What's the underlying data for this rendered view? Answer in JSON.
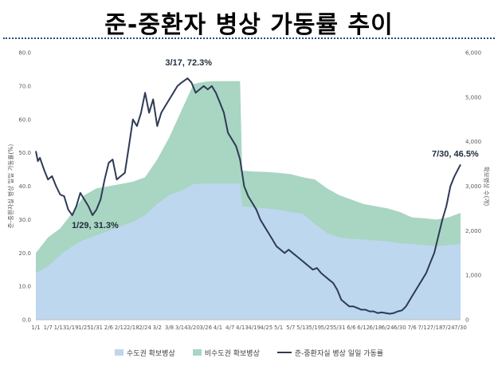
{
  "page": {
    "title": "준-중환자 병상 가동률 추이"
  },
  "colors": {
    "capital_area": "#bdd7ee",
    "non_capital_area": "#a9d5c3",
    "utilization_line": "#2e3b55",
    "title_rule": "#1f4e79"
  },
  "chart_data": {
    "type": "area",
    "title": "",
    "ylabel_left": "준-중환자실 병상 일일 가동률(%)",
    "ylabel_right": "확보병상 수(개)",
    "ylim_left": [
      0,
      80
    ],
    "ylim_right": [
      0,
      6000
    ],
    "yticks_left": [
      "0.0",
      "10.0",
      "20.0",
      "30.0",
      "40.0",
      "50.0",
      "60.0",
      "70.0",
      "80.0"
    ],
    "yticks_right": [
      "0",
      "1,000",
      "2,000",
      "3,000",
      "4,000",
      "5,000",
      "6,000"
    ],
    "x_start": "1/1",
    "x_end": "7/30",
    "xticks": [
      "1/1",
      "1/7",
      "1/13",
      "1/19",
      "1/25",
      "1/31",
      "2/6",
      "2/12",
      "2/18",
      "2/24",
      "3/2",
      "3/8",
      "3/14",
      "3/20",
      "3/26",
      "4/1",
      "4/7",
      "4/13",
      "4/19",
      "4/25",
      "5/1",
      "5/7",
      "5/13",
      "5/19",
      "5/25",
      "5/31",
      "6/6",
      "6/12",
      "6/18",
      "6/24",
      "6/30",
      "7/6",
      "7/12",
      "7/18",
      "7/24",
      "7/30"
    ],
    "legend_position": "bottom",
    "grid": false,
    "series": [
      {
        "name": "수도권 확보병상",
        "kind": "area",
        "axis": "right",
        "points": [
          [
            "1/1",
            1050
          ],
          [
            "1/7",
            1200
          ],
          [
            "1/13",
            1450
          ],
          [
            "1/19",
            1650
          ],
          [
            "1/25",
            1800
          ],
          [
            "1/31",
            1900
          ],
          [
            "2/6",
            2000
          ],
          [
            "2/12",
            2100
          ],
          [
            "2/18",
            2200
          ],
          [
            "2/24",
            2350
          ],
          [
            "3/2",
            2600
          ],
          [
            "3/8",
            2800
          ],
          [
            "3/14",
            2900
          ],
          [
            "3/20",
            3050
          ],
          [
            "3/26",
            3060
          ],
          [
            "4/1",
            3060
          ],
          [
            "4/7",
            3060
          ],
          [
            "4/12",
            3060
          ],
          [
            "4/13",
            2550
          ],
          [
            "4/19",
            2520
          ],
          [
            "4/25",
            2500
          ],
          [
            "5/1",
            2470
          ],
          [
            "5/7",
            2420
          ],
          [
            "5/13",
            2380
          ],
          [
            "5/19",
            2150
          ],
          [
            "5/25",
            1950
          ],
          [
            "5/31",
            1850
          ],
          [
            "6/6",
            1820
          ],
          [
            "6/12",
            1800
          ],
          [
            "6/18",
            1780
          ],
          [
            "6/24",
            1760
          ],
          [
            "6/30",
            1720
          ],
          [
            "7/6",
            1700
          ],
          [
            "7/12",
            1680
          ],
          [
            "7/18",
            1650
          ],
          [
            "7/24",
            1680
          ],
          [
            "7/30",
            1700
          ]
        ]
      },
      {
        "name": "비수도권 확보병상",
        "kind": "area",
        "axis": "right",
        "points": [
          [
            "1/1",
            1500
          ],
          [
            "1/7",
            1850
          ],
          [
            "1/13",
            2050
          ],
          [
            "1/19",
            2400
          ],
          [
            "1/25",
            2800
          ],
          [
            "1/31",
            2950
          ],
          [
            "2/6",
            3000
          ],
          [
            "2/12",
            3050
          ],
          [
            "2/18",
            3100
          ],
          [
            "2/24",
            3200
          ],
          [
            "3/2",
            3600
          ],
          [
            "3/8",
            4100
          ],
          [
            "3/14",
            4700
          ],
          [
            "3/20",
            5300
          ],
          [
            "3/26",
            5350
          ],
          [
            "4/1",
            5360
          ],
          [
            "4/7",
            5360
          ],
          [
            "4/12",
            5360
          ],
          [
            "4/13",
            3350
          ],
          [
            "4/19",
            3330
          ],
          [
            "4/25",
            3320
          ],
          [
            "5/1",
            3300
          ],
          [
            "5/7",
            3270
          ],
          [
            "5/13",
            3200
          ],
          [
            "5/19",
            3150
          ],
          [
            "5/25",
            2950
          ],
          [
            "5/31",
            2800
          ],
          [
            "6/6",
            2700
          ],
          [
            "6/12",
            2600
          ],
          [
            "6/18",
            2550
          ],
          [
            "6/24",
            2500
          ],
          [
            "6/30",
            2420
          ],
          [
            "7/6",
            2300
          ],
          [
            "7/12",
            2280
          ],
          [
            "7/18",
            2250
          ],
          [
            "7/24",
            2300
          ],
          [
            "7/30",
            2400
          ]
        ]
      },
      {
        "name": "준-중환자실 병상 일일 가동률",
        "kind": "line",
        "axis": "left",
        "points": [
          [
            "1/1",
            50.5
          ],
          [
            "1/2",
            47.5
          ],
          [
            "1/3",
            48.5
          ],
          [
            "1/5",
            45
          ],
          [
            "1/7",
            42
          ],
          [
            "1/9",
            43
          ],
          [
            "1/11",
            40
          ],
          [
            "1/13",
            37.5
          ],
          [
            "1/15",
            37
          ],
          [
            "1/17",
            33
          ],
          [
            "1/19",
            31.3
          ],
          [
            "1/21",
            34
          ],
          [
            "1/23",
            38
          ],
          [
            "1/25",
            36
          ],
          [
            "1/27",
            34
          ],
          [
            "1/29",
            31.3
          ],
          [
            "1/31",
            33
          ],
          [
            "2/2",
            36
          ],
          [
            "2/4",
            42
          ],
          [
            "2/6",
            47
          ],
          [
            "2/8",
            48
          ],
          [
            "2/10",
            42
          ],
          [
            "2/12",
            43
          ],
          [
            "2/14",
            44
          ],
          [
            "2/16",
            52
          ],
          [
            "2/18",
            60
          ],
          [
            "2/20",
            58
          ],
          [
            "2/22",
            62
          ],
          [
            "2/24",
            68
          ],
          [
            "2/26",
            62
          ],
          [
            "2/28",
            66
          ],
          [
            "3/2",
            58
          ],
          [
            "3/4",
            62
          ],
          [
            "3/6",
            64
          ],
          [
            "3/8",
            66
          ],
          [
            "3/10",
            68
          ],
          [
            "3/12",
            70
          ],
          [
            "3/14",
            71
          ],
          [
            "3/17",
            72.3
          ],
          [
            "3/19",
            71
          ],
          [
            "3/21",
            68
          ],
          [
            "3/23",
            69
          ],
          [
            "3/25",
            70
          ],
          [
            "3/27",
            69
          ],
          [
            "3/29",
            70
          ],
          [
            "3/31",
            68
          ],
          [
            "4/2",
            65
          ],
          [
            "4/4",
            62
          ],
          [
            "4/6",
            56
          ],
          [
            "4/8",
            54
          ],
          [
            "4/10",
            52
          ],
          [
            "4/12",
            48
          ],
          [
            "4/14",
            40
          ],
          [
            "4/16",
            37
          ],
          [
            "4/18",
            35
          ],
          [
            "4/20",
            33
          ],
          [
            "4/22",
            30
          ],
          [
            "4/24",
            28
          ],
          [
            "4/26",
            26
          ],
          [
            "4/28",
            24
          ],
          [
            "4/30",
            22
          ],
          [
            "5/2",
            21
          ],
          [
            "5/4",
            20
          ],
          [
            "5/6",
            21
          ],
          [
            "5/8",
            20
          ],
          [
            "5/10",
            19
          ],
          [
            "5/12",
            18
          ],
          [
            "5/14",
            17
          ],
          [
            "5/16",
            16
          ],
          [
            "5/18",
            15
          ],
          [
            "5/20",
            15.5
          ],
          [
            "5/22",
            14
          ],
          [
            "5/24",
            13
          ],
          [
            "5/26",
            12
          ],
          [
            "5/28",
            11
          ],
          [
            "5/30",
            9
          ],
          [
            "6/1",
            6
          ],
          [
            "6/3",
            5
          ],
          [
            "6/5",
            4
          ],
          [
            "6/7",
            4
          ],
          [
            "6/9",
            3.5
          ],
          [
            "6/11",
            3
          ],
          [
            "6/13",
            3
          ],
          [
            "6/15",
            2.5
          ],
          [
            "6/17",
            2.5
          ],
          [
            "6/19",
            2
          ],
          [
            "6/21",
            2.2
          ],
          [
            "6/23",
            2
          ],
          [
            "6/25",
            1.8
          ],
          [
            "6/27",
            2
          ],
          [
            "6/29",
            2.5
          ],
          [
            "7/1",
            2.8
          ],
          [
            "7/3",
            4
          ],
          [
            "7/5",
            6
          ],
          [
            "7/7",
            8
          ],
          [
            "7/9",
            10
          ],
          [
            "7/11",
            12
          ],
          [
            "7/13",
            14
          ],
          [
            "7/15",
            17
          ],
          [
            "7/17",
            20
          ],
          [
            "7/19",
            25
          ],
          [
            "7/21",
            30
          ],
          [
            "7/23",
            34
          ],
          [
            "7/25",
            40
          ],
          [
            "7/27",
            43
          ],
          [
            "7/30",
            46.5
          ]
        ]
      }
    ],
    "annotations": [
      {
        "label": "3/17, 72.3%",
        "x": "3/17",
        "y": 72.3
      },
      {
        "label": "1/29, 31.3%",
        "x": "1/29",
        "y": 31.3
      },
      {
        "label": "7/30, 46.5%",
        "x": "7/30",
        "y": 46.5
      }
    ]
  }
}
